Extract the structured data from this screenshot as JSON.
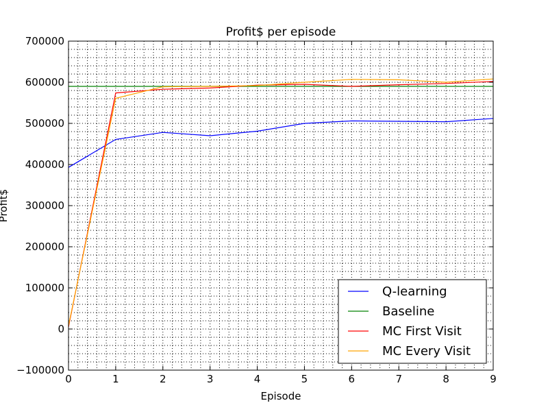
{
  "chart_data": {
    "type": "line",
    "title": "Profit$ per episode",
    "xlabel": "Episode",
    "ylabel": "Profit$",
    "x": [
      0,
      1,
      2,
      3,
      4,
      5,
      6,
      7,
      8,
      9
    ],
    "xlim": [
      0,
      9
    ],
    "ylim": [
      -100000,
      700000
    ],
    "xticks": [
      "0",
      "1",
      "2",
      "3",
      "4",
      "5",
      "6",
      "7",
      "8",
      "9"
    ],
    "yticks": [
      "−100000",
      "0",
      "100000",
      "200000",
      "300000",
      "400000",
      "500000",
      "600000",
      "700000"
    ],
    "grid": true,
    "legend_position": "lower-right",
    "series": [
      {
        "name": "Q-learning",
        "color": "#0000ff",
        "values": [
          393000,
          461000,
          478000,
          470000,
          481000,
          500000,
          506000,
          505000,
          504000,
          512000
        ]
      },
      {
        "name": "Baseline",
        "color": "#008000",
        "values": [
          590000,
          590000,
          590000,
          590000,
          590000,
          590000,
          590000,
          590000,
          590000,
          590000
        ]
      },
      {
        "name": "MC First Visit",
        "color": "#ff0000",
        "values": [
          5000,
          574000,
          583000,
          586000,
          593000,
          595000,
          590000,
          594000,
          597000,
          602000
        ]
      },
      {
        "name": "MC Every Visit",
        "color": "#ffa500",
        "values": [
          8000,
          561000,
          589000,
          590000,
          592000,
          600000,
          607000,
          606000,
          600000,
          608000
        ]
      }
    ]
  }
}
